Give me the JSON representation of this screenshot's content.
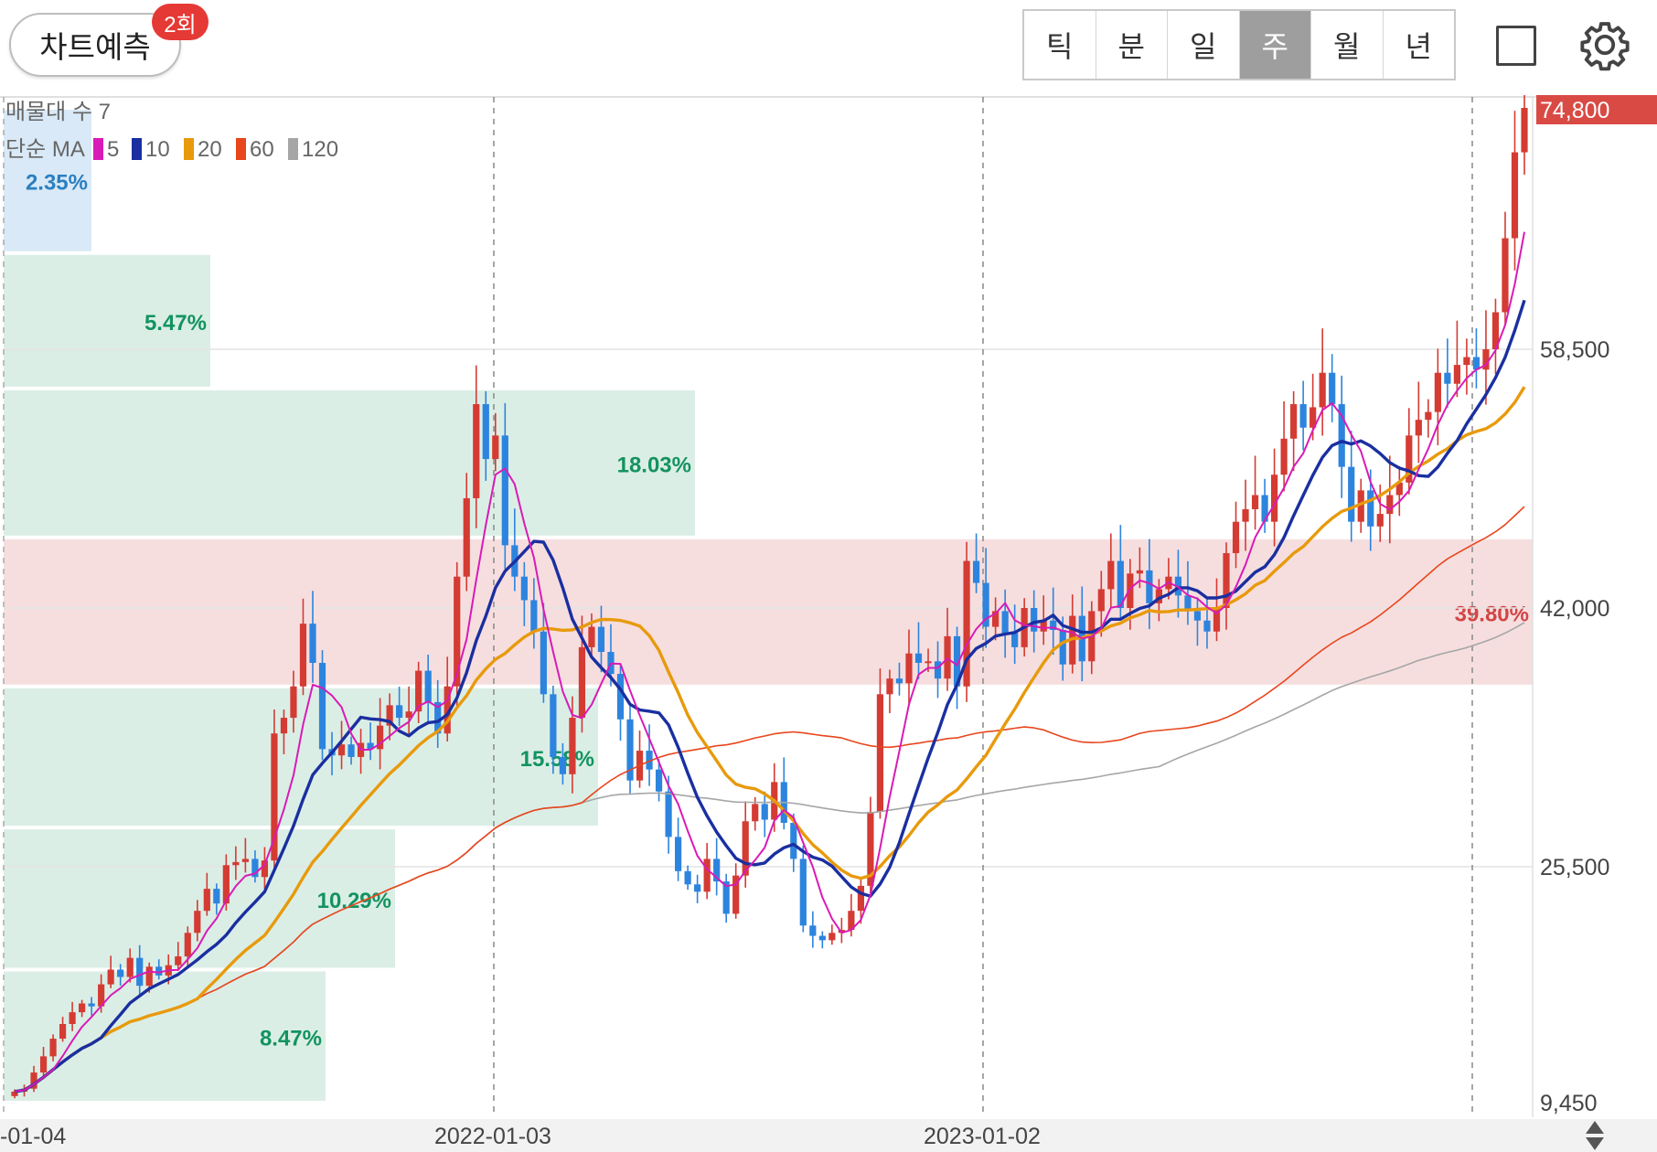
{
  "toolbar": {
    "predict_label": "차트예측",
    "predict_badge": "2회",
    "periods": [
      "틱",
      "분",
      "일",
      "주",
      "월",
      "년"
    ],
    "active_period": "주",
    "icons": [
      "square-icon",
      "gear-icon"
    ]
  },
  "legend": {
    "volume_profile_label": "매물대 수 7",
    "ma_label": "단순 MA",
    "ma": [
      {
        "period": "5",
        "color": "#d81bb6"
      },
      {
        "period": "10",
        "color": "#1a2fa0"
      },
      {
        "period": "20",
        "color": "#e89a0c"
      },
      {
        "period": "60",
        "color": "#e8461c"
      },
      {
        "period": "120",
        "color": "#a6a6a6"
      }
    ]
  },
  "chart_data": {
    "type": "candlestick",
    "interval": "weekly",
    "y_ticks": [
      "74,800",
      "58,500",
      "42,000",
      "25,500",
      "9,450"
    ],
    "ylim": [
      9450,
      74800
    ],
    "x_ticks": [
      "-01-04",
      "2022-01-03",
      "2023-01-02"
    ],
    "last_price": "74,800",
    "grid": true,
    "volume_profile": [
      {
        "range": [
          65000,
          74800
        ],
        "pct": "2.35%",
        "highlight": "blue"
      },
      {
        "range": [
          56000,
          65000
        ],
        "pct": "5.47%"
      },
      {
        "range": [
          46500,
          56000
        ],
        "pct": "18.03%"
      },
      {
        "range": [
          37000,
          46500
        ],
        "pct": "39.80%",
        "highlight": "red"
      },
      {
        "range": [
          28000,
          37000
        ],
        "pct": "15.58%"
      },
      {
        "range": [
          18500,
          28000
        ],
        "pct": "10.29%"
      },
      {
        "range": [
          9450,
          18500
        ],
        "pct": "8.47%"
      }
    ],
    "closes": [
      10200,
      10400,
      11500,
      12600,
      13800,
      14800,
      15600,
      16200,
      16000,
      17500,
      18500,
      18000,
      19300,
      17400,
      18700,
      18100,
      18800,
      19400,
      21000,
      22500,
      24000,
      23000,
      25600,
      25800,
      26000,
      24800,
      25900,
      34000,
      35000,
      37000,
      41000,
      38500,
      33000,
      32600,
      33300,
      32500,
      33400,
      33000,
      34500,
      35800,
      35000,
      35400,
      38000,
      36000,
      34000,
      37000,
      44000,
      49000,
      55000,
      51500,
      53000,
      46000,
      44000,
      42500,
      40500,
      36500,
      32500,
      31400,
      35000,
      39500,
      40800,
      39200,
      37800,
      34900,
      31000,
      32900,
      31700,
      30300,
      27400,
      25200,
      24300,
      23800,
      26000,
      24500,
      22300,
      24900,
      28400,
      29500,
      28500,
      30900,
      28300,
      26000,
      21500,
      20800,
      20500,
      21000,
      21200,
      22500,
      24200,
      29000,
      36500,
      37500,
      37200,
      39100,
      38500,
      38600,
      37500,
      40200,
      37000,
      45000,
      43600,
      40800,
      41800,
      40400,
      39500,
      42000,
      40500,
      41200,
      40600,
      38400,
      41500,
      38600,
      41800,
      43200,
      45000,
      42000,
      44200,
      44400,
      42300,
      43200,
      44000,
      42800,
      41800,
      41200,
      40500,
      42000,
      45500,
      47500,
      48300,
      49200,
      47500,
      50500,
      52800,
      55000,
      53500,
      54800,
      57000,
      55000,
      51000,
      47500,
      49500,
      47200,
      48000,
      49200,
      50000,
      53000,
      54000,
      54500,
      57000,
      56300,
      57500,
      58000,
      57200,
      58500,
      61000,
      66000,
      71800,
      74800
    ],
    "ma5_last": 67000,
    "ma10_last": 61300,
    "ma20_last": 58000,
    "ma60_last": 49000,
    "ma120_last": 41500
  }
}
